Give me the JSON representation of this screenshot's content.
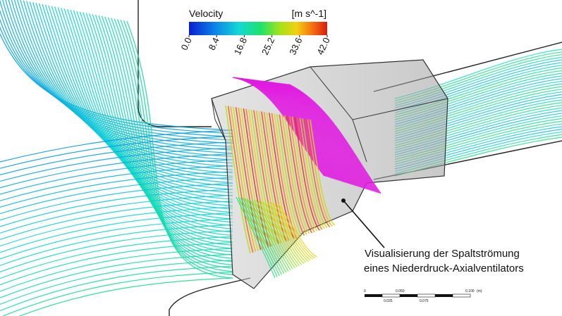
{
  "legend": {
    "title": "Velocity",
    "unit": "[m s^-1]",
    "ticks": [
      "0.0",
      "8.4",
      "16.8",
      "25.2",
      "33.6",
      "42.0"
    ],
    "range": [
      0,
      42
    ],
    "colormap": [
      "#0a1fd0",
      "#0b7fe8",
      "#13d7d6",
      "#1ee26a",
      "#a6e21a",
      "#f2d010",
      "#f36a10",
      "#d81c10"
    ]
  },
  "caption": {
    "line1": "Visualisierung der Spaltströmung",
    "line2": "eines Niederdruck-Axialventilators"
  },
  "scale_bar": {
    "top_labels": [
      "0",
      "0.050",
      "0.100",
      "(m)"
    ],
    "bottom_labels": [
      "0.025",
      "0.075"
    ]
  },
  "colors": {
    "streamline_blue": "#1f4fd8",
    "streamline_cyan": "#19c9d4",
    "streamline_green": "#2fe05a",
    "tip_gap_magenta": "#e01ae0",
    "high_speed_red": "#d21c10",
    "housing_grey": "#a8a8a8",
    "background": "#ffffff"
  }
}
